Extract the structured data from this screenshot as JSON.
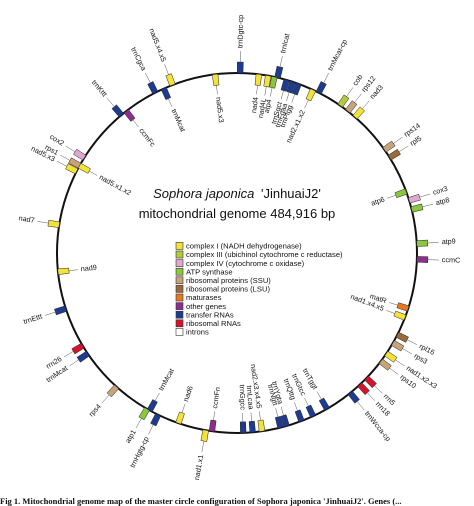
{
  "title": {
    "species": "Sophora japonica",
    "cultivar": "'JinhuaiJ2'",
    "subtitle": "mitochondrial genome 484,916 bp"
  },
  "legend": [
    {
      "label": "complex I (NADH dehydrogenase)",
      "color": "#f2e23a"
    },
    {
      "label": "complex III (ubichinol cytochrome c reductase)",
      "color": "#b5c93c"
    },
    {
      "label": "complex IV (cytochrome c oxidase)",
      "color": "#e0a8d0"
    },
    {
      "label": "ATP synthase",
      "color": "#8cc63f"
    },
    {
      "label": "ribosomal proteins (SSU)",
      "color": "#c9a27a"
    },
    {
      "label": "ribosomal proteins (LSU)",
      "color": "#9a6a3a"
    },
    {
      "label": "maturases",
      "color": "#e87722"
    },
    {
      "label": "other genes",
      "color": "#8b2f8f"
    },
    {
      "label": "transfer RNAs",
      "color": "#1f3b8f"
    },
    {
      "label": "ribosomal RNAs",
      "color": "#d4142a"
    },
    {
      "label": "introns",
      "color": "#ffffff"
    }
  ],
  "genes_outside": [
    {
      "label": "trnDgtc-cp",
      "angle": 1,
      "color": "#1f3b8f"
    },
    {
      "label": "trnIcat",
      "angle": 13,
      "color": "#1f3b8f"
    },
    {
      "label": "trnMcat-cp",
      "angle": 27,
      "color": "#1f3b8f"
    },
    {
      "label": "cob",
      "angle": 35,
      "color": "#b5c93c"
    },
    {
      "label": "rps12",
      "angle": 38,
      "color": "#c9a27a"
    },
    {
      "label": "nad3",
      "angle": 41,
      "color": "#f2e23a"
    },
    {
      "label": "rps14",
      "angle": 55,
      "color": "#c9a27a"
    },
    {
      "label": "rpl5",
      "angle": 58,
      "color": "#9a6a3a"
    },
    {
      "label": "cox3",
      "angle": 73,
      "color": "#e0a8d0"
    },
    {
      "label": "atp8",
      "angle": 76,
      "color": "#8cc63f"
    },
    {
      "label": "atp9",
      "angle": 87,
      "color": "#8cc63f"
    },
    {
      "label": "ccmC",
      "angle": 92,
      "color": "#8b2f8f"
    },
    {
      "label": "rpl16",
      "angle": 117,
      "color": "#9a6a3a"
    },
    {
      "label": "rps3",
      "angle": 120,
      "color": "#c9a27a"
    },
    {
      "label": "nad1.x2.x3",
      "angle": 124,
      "color": "#f2e23a"
    },
    {
      "label": "rps10",
      "angle": 127,
      "color": "#c9a27a"
    },
    {
      "label": "rrn5",
      "angle": 134,
      "color": "#d4142a"
    },
    {
      "label": "rrn18",
      "angle": 137,
      "color": "#d4142a"
    },
    {
      "label": "trnWcca-cp",
      "angle": 141,
      "color": "#1f3b8f"
    },
    {
      "label": "nad1.x1",
      "angle": 190,
      "color": "#f2e23a"
    },
    {
      "label": "trnHgtg-cp",
      "angle": 206,
      "color": "#1f3b8f"
    },
    {
      "label": "atp1",
      "angle": 210,
      "color": "#8cc63f"
    },
    {
      "label": "rps4",
      "angle": 222,
      "color": "#c9a27a"
    },
    {
      "label": "trnMcat",
      "angle": 236,
      "color": "#1f3b8f"
    },
    {
      "label": "rrn26",
      "angle": 239,
      "color": "#d4142a"
    },
    {
      "label": "trnEttt",
      "angle": 252,
      "color": "#1f3b8f"
    },
    {
      "label": "nad7",
      "angle": 279,
      "color": "#f2e23a"
    },
    {
      "label": "nad5.x3",
      "angle": 297,
      "color": "#f2e23a"
    },
    {
      "label": "rps1",
      "angle": 299,
      "color": "#c9a27a"
    },
    {
      "label": "cox2",
      "angle": 302,
      "color": "#e0a8d0"
    },
    {
      "label": "trnKttt",
      "angle": 320,
      "color": "#1f3b8f"
    },
    {
      "label": "trnCgca",
      "angle": 333,
      "color": "#1f3b8f"
    },
    {
      "label": "nad5.x4.x5",
      "angle": 339,
      "color": "#f2e23a"
    }
  ],
  "genes_inside": [
    {
      "label": "nad5.x3",
      "angle": 353,
      "color": "#f2e23a"
    },
    {
      "label": "nad4",
      "angle": 7,
      "color": "#f2e23a"
    },
    {
      "label": "nad4L",
      "angle": 10,
      "color": "#f2e23a"
    },
    {
      "label": "atp4",
      "angle": 12,
      "color": "#8cc63f"
    },
    {
      "label": "trnSgct",
      "angle": 16,
      "color": "#1f3b8f"
    },
    {
      "label": "trnFgaa",
      "angle": 18,
      "color": "#1f3b8f"
    },
    {
      "label": "trnPtgg",
      "angle": 20,
      "color": "#1f3b8f"
    },
    {
      "label": "nad2.x1.x2",
      "angle": 25,
      "color": "#f2e23a"
    },
    {
      "label": "atp6",
      "angle": 70,
      "color": "#8cc63f"
    },
    {
      "label": "matR",
      "angle": 108,
      "color": "#e87722"
    },
    {
      "label": "nad1.x4.x5",
      "angle": 111,
      "color": "#f2e23a"
    },
    {
      "label": "trnTggt",
      "angle": 150,
      "color": "#1f3b8f"
    },
    {
      "label": "trnGtcc",
      "angle": 155,
      "color": "#1f3b8f"
    },
    {
      "label": "trnQttg",
      "angle": 159,
      "color": "#1f3b8f"
    },
    {
      "label": "trnYgta",
      "angle": 164,
      "color": "#1f3b8f"
    },
    {
      "label": "trnNgtt",
      "angle": 166,
      "color": "#1f3b8f"
    },
    {
      "label": "nad2.x3.x4.x5",
      "angle": 172,
      "color": "#f2e23a"
    },
    {
      "label": "trnLcaa",
      "angle": 175,
      "color": "#1f3b8f"
    },
    {
      "label": "trnGgcc",
      "angle": 178,
      "color": "#1f3b8f"
    },
    {
      "label": "nad6",
      "angle": 199,
      "color": "#f2e23a"
    },
    {
      "label": "ccmFn",
      "angle": 188,
      "color": "#8b2f8f"
    },
    {
      "label": "trnMcat",
      "angle": 209,
      "color": "#1f3b8f"
    },
    {
      "label": "nad9",
      "angle": 264,
      "color": "#f2e23a"
    },
    {
      "label": "nad5.x1.x2",
      "angle": 299,
      "color": "#f2e23a"
    },
    {
      "label": "ccmFc",
      "angle": 322,
      "color": "#8b2f8f"
    },
    {
      "label": "trnMcat",
      "angle": 336,
      "color": "#1f3b8f"
    }
  ],
  "caption": "Fig 1. Mitochondrial genome map of the master circle configuration of Sophora japonica 'JinhuaiJ2'. Genes (..."
}
